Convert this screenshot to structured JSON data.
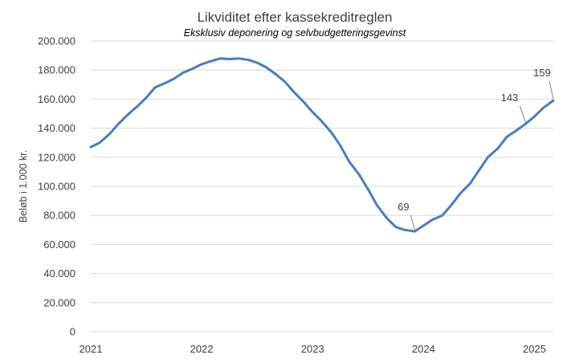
{
  "chart_data": {
    "type": "line",
    "title": "Likviditet efter kassekreditreglen",
    "subtitle": "Eksklusiv deponering og  selvbudgetteringsgevinst",
    "ylabel": "Beløb i 1.000 kr.",
    "xlabel": "",
    "x_ticks": [
      "2021",
      "2022",
      "2023",
      "2024",
      "2025"
    ],
    "y_ticks": [
      "0",
      "20.000",
      "40.000",
      "60.000",
      "80.000",
      "100.000",
      "120.000",
      "140.000",
      "160.000",
      "180.000",
      "200.000"
    ],
    "ylim": [
      0,
      200000
    ],
    "xlim": [
      2021.0,
      2025.17
    ],
    "grid": "horizontal",
    "color": "#4a7ebb",
    "series": [
      {
        "points": [
          [
            2021.0,
            127000
          ],
          [
            2021.08,
            130000
          ],
          [
            2021.17,
            136000
          ],
          [
            2021.25,
            143000
          ],
          [
            2021.33,
            149000
          ],
          [
            2021.42,
            155000
          ],
          [
            2021.5,
            161000
          ],
          [
            2021.58,
            168000
          ],
          [
            2021.67,
            171000
          ],
          [
            2021.75,
            174000
          ],
          [
            2021.83,
            178000
          ],
          [
            2021.92,
            181000
          ],
          [
            2022.0,
            184000
          ],
          [
            2022.08,
            186000
          ],
          [
            2022.17,
            188000
          ],
          [
            2022.25,
            187500
          ],
          [
            2022.33,
            188000
          ],
          [
            2022.42,
            187000
          ],
          [
            2022.5,
            185000
          ],
          [
            2022.58,
            182000
          ],
          [
            2022.67,
            177000
          ],
          [
            2022.75,
            172000
          ],
          [
            2022.83,
            165000
          ],
          [
            2022.92,
            158000
          ],
          [
            2023.0,
            151000
          ],
          [
            2023.08,
            145000
          ],
          [
            2023.17,
            137000
          ],
          [
            2023.25,
            128000
          ],
          [
            2023.33,
            117000
          ],
          [
            2023.42,
            108000
          ],
          [
            2023.5,
            98000
          ],
          [
            2023.58,
            87000
          ],
          [
            2023.67,
            78000
          ],
          [
            2023.75,
            72000
          ],
          [
            2023.83,
            70000
          ],
          [
            2023.92,
            69000
          ],
          [
            2024.0,
            73000
          ],
          [
            2024.08,
            77000
          ],
          [
            2024.17,
            80000
          ],
          [
            2024.25,
            87000
          ],
          [
            2024.33,
            95000
          ],
          [
            2024.42,
            102000
          ],
          [
            2024.5,
            111000
          ],
          [
            2024.58,
            120000
          ],
          [
            2024.67,
            126000
          ],
          [
            2024.75,
            134000
          ],
          [
            2024.83,
            138000
          ],
          [
            2024.92,
            143000
          ],
          [
            2025.0,
            148000
          ],
          [
            2025.08,
            154000
          ],
          [
            2025.17,
            159000
          ]
        ]
      }
    ],
    "annotations": [
      {
        "label": "69",
        "x": 2023.92,
        "y": 69000
      },
      {
        "label": "143",
        "x": 2024.92,
        "y": 143000
      },
      {
        "label": "159",
        "x": 2025.17,
        "y": 159000
      }
    ]
  }
}
